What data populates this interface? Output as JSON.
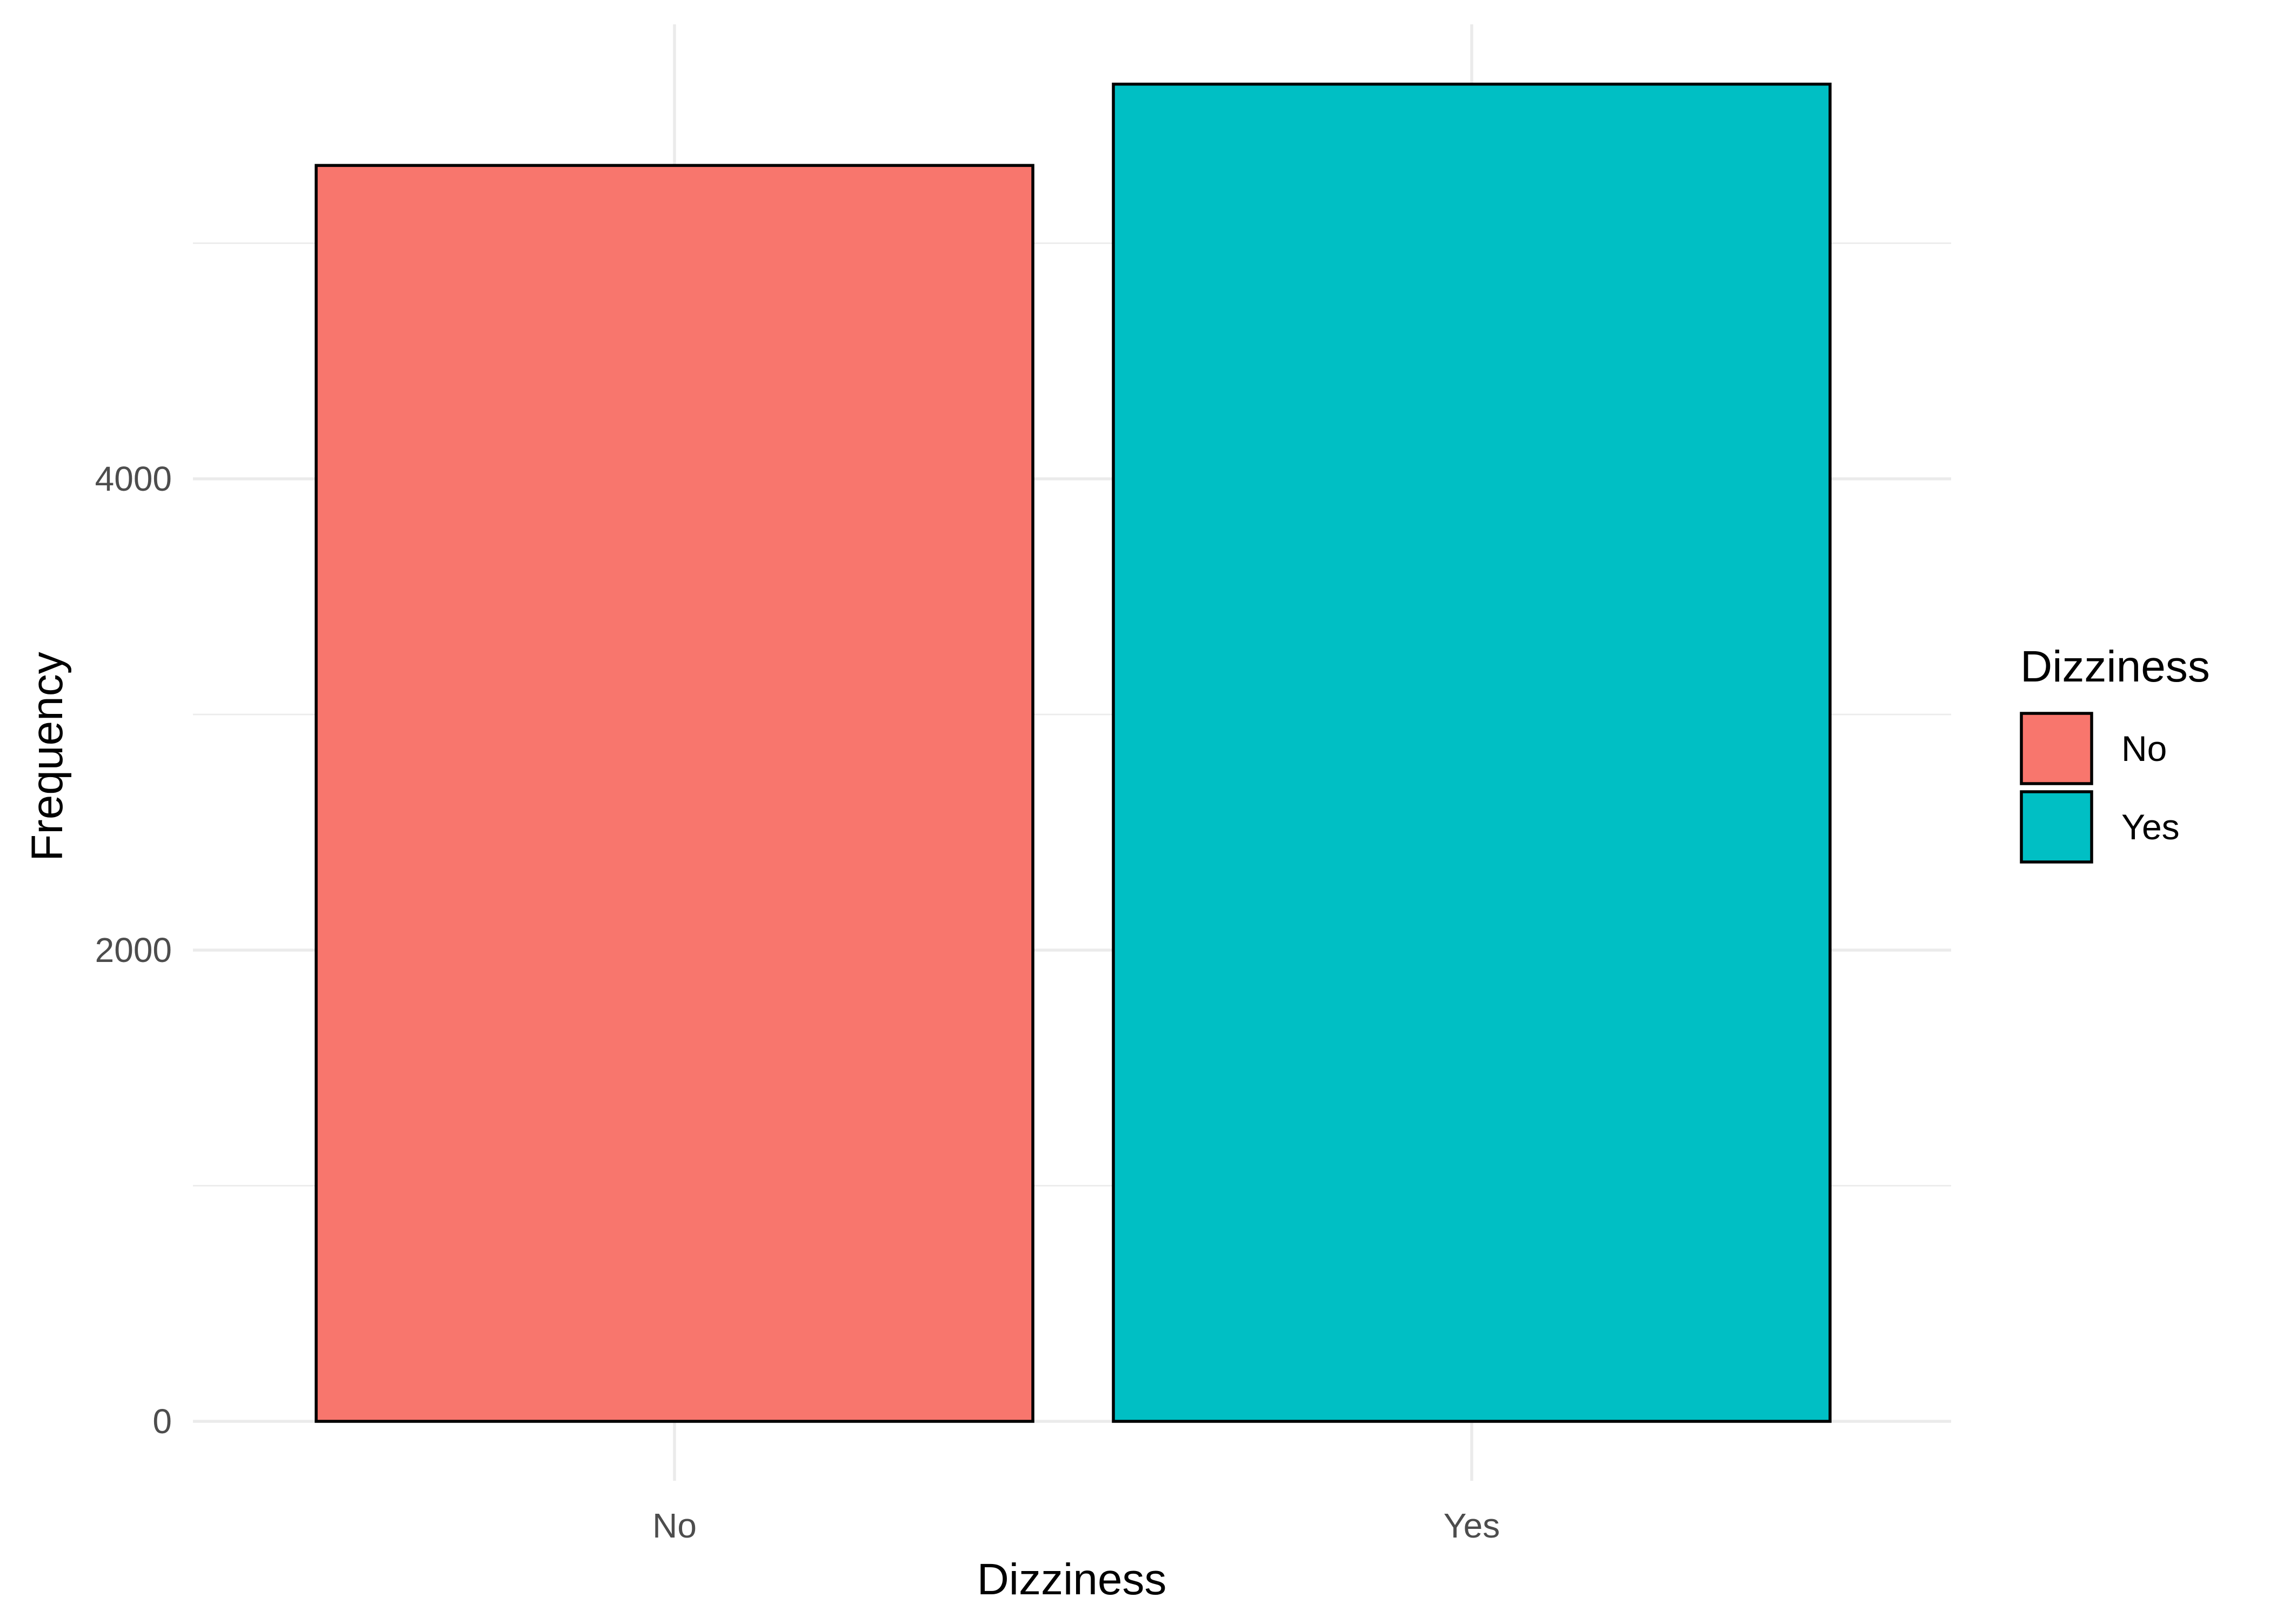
{
  "chart_data": {
    "type": "bar",
    "title": "",
    "xlabel": "Dizziness",
    "ylabel": "Frequency",
    "categories": [
      "No",
      "Yes"
    ],
    "values": [
      5330,
      5675
    ],
    "colors": [
      "#F8766D",
      "#00BFC4"
    ],
    "ylim": [
      0,
      5850
    ],
    "yticks": [
      0,
      2000,
      4000
    ],
    "yticks_minor": [
      1000,
      3000,
      5000
    ],
    "grid": true,
    "legend": {
      "title": "Dizziness",
      "position": "right",
      "entries": [
        {
          "label": "No",
          "color": "#F8766D"
        },
        {
          "label": "Yes",
          "color": "#00BFC4"
        }
      ]
    }
  }
}
